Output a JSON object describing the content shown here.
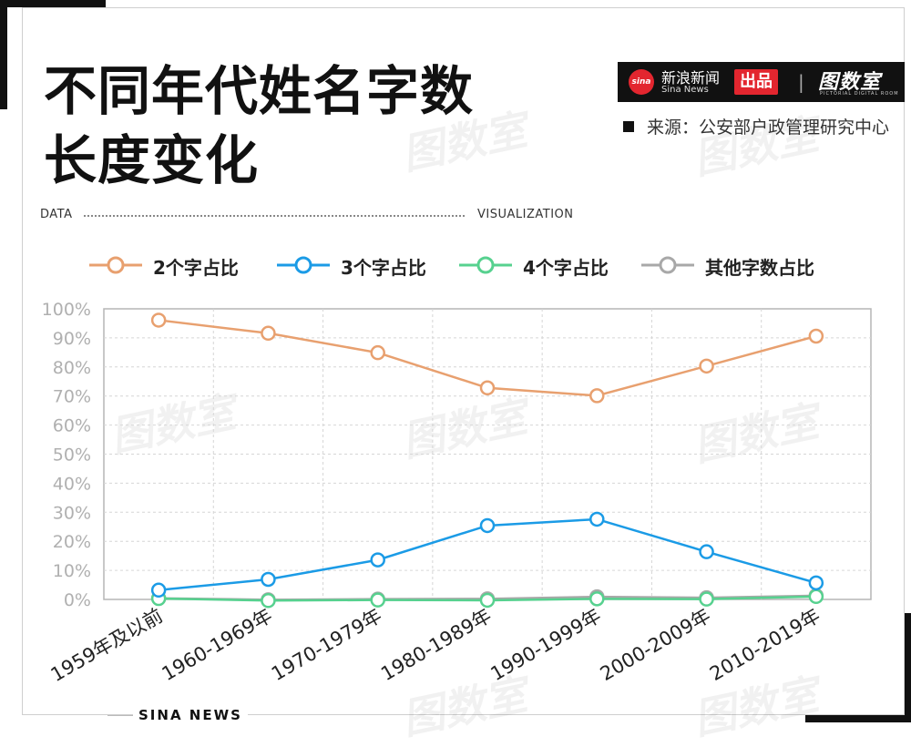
{
  "title_lines": [
    "不同年代姓名字数",
    "长度变化"
  ],
  "brand": {
    "logo_text": "sina",
    "name_cn": "新浪新闻",
    "name_en": "Sina News",
    "badge": "出品",
    "divider": "|",
    "logo2": "图数室",
    "logo2_sub": "PICTORIAL DIGITAL ROOM"
  },
  "source_text": "来源：公安部户政管理研究中心",
  "header_left": "DATA",
  "header_right": "VISUALIZATION",
  "footer": "SINA  NEWS",
  "watermark": "图数室",
  "colors": {
    "series_2": "#e8a06f",
    "series_3": "#1b9be6",
    "series_4": "#57d18f",
    "series_other": "#a8a8a8",
    "accent": "#e3262f"
  },
  "chart_data": {
    "type": "line",
    "categories": [
      "1959年及以前",
      "1960-1969年",
      "1970-1979年",
      "1980-1989年",
      "1990-1999年",
      "2000-2009年",
      "2010-2019年"
    ],
    "ylim": [
      0,
      100
    ],
    "yticks": [
      "0%",
      "10%",
      "20%",
      "30%",
      "40%",
      "50%",
      "60%",
      "70%",
      "80%",
      "90%",
      "100%"
    ],
    "grid": true,
    "legend_position": "top",
    "series": [
      {
        "name": "2个字占比",
        "color": "#e8a06f",
        "values": [
          96.1,
          91.6,
          84.9,
          72.8,
          70.1,
          80.3,
          90.6
        ]
      },
      {
        "name": "3个字占比",
        "color": "#1b9be6",
        "values": [
          3.2,
          6.9,
          13.6,
          25.4,
          27.6,
          16.4,
          5.7
        ]
      },
      {
        "name": "4个字占比",
        "color": "#57d18f",
        "values": [
          0.3,
          -0.4,
          -0.2,
          -0.3,
          0.2,
          0.1,
          1.0
        ]
      },
      {
        "name": "其他字数占比",
        "color": "#a8a8a8",
        "values": [
          0.4,
          -0.1,
          0.1,
          0.2,
          0.9,
          0.6,
          1.3
        ]
      }
    ]
  }
}
